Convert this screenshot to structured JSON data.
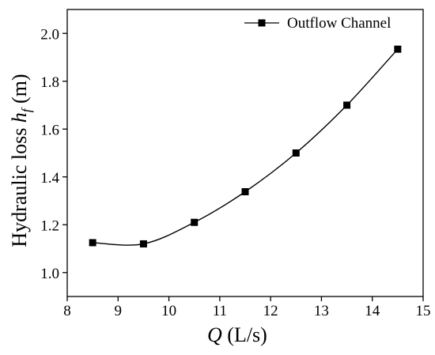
{
  "chart_data": {
    "type": "line",
    "x": [
      8.5,
      9.5,
      10.5,
      11.5,
      12.5,
      13.5,
      14.5
    ],
    "series": [
      {
        "name": "Outflow Channel",
        "values": [
          1.125,
          1.12,
          1.21,
          1.338,
          1.5,
          1.7,
          1.934
        ]
      }
    ],
    "xlim": [
      8,
      15
    ],
    "ylim": [
      0.9,
      2.1
    ],
    "xticks": [
      8,
      9,
      10,
      11,
      12,
      13,
      14,
      15
    ],
    "yticks": [
      1.0,
      1.2,
      1.4,
      1.6,
      1.8,
      2.0
    ],
    "xtick_labels": [
      "8",
      "9",
      "10",
      "11",
      "12",
      "13",
      "14",
      "15"
    ],
    "ytick_labels": [
      "1.0",
      "1.2",
      "1.4",
      "1.6",
      "1.8",
      "2.0"
    ],
    "xlabel": {
      "var": "Q",
      "unit": " (L/s)"
    },
    "ylabel": {
      "text": "Hydraulic loss ",
      "var": "h",
      "sub": "f",
      "unit": " (m)"
    },
    "legend_position": "top-right",
    "grid": false,
    "line_color": "#000000",
    "marker": "square"
  }
}
